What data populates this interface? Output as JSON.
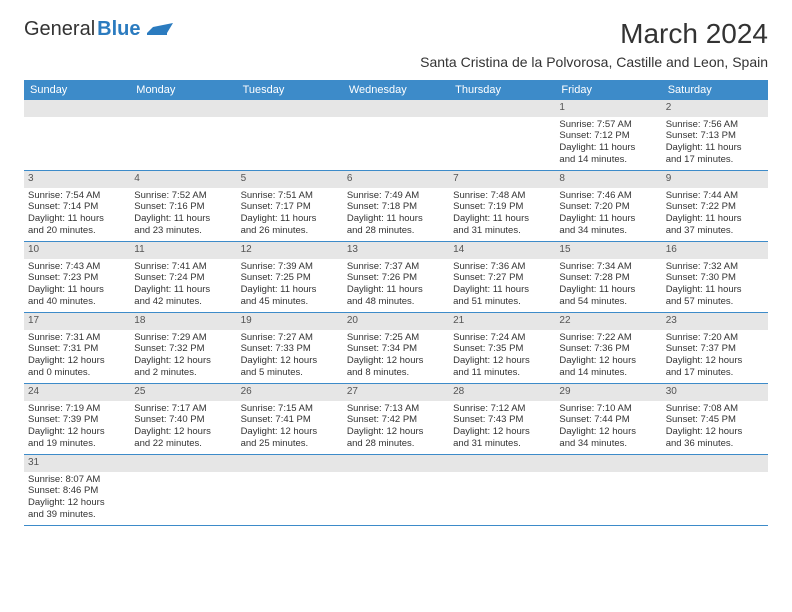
{
  "logo": {
    "part1": "General",
    "part2": "Blue"
  },
  "title": "March 2024",
  "location": "Santa Cristina de la Polvorosa, Castille and Leon, Spain",
  "colors": {
    "header_bg": "#3d8bc9",
    "header_text": "#ffffff",
    "daynum_bg": "#e6e6e6",
    "text": "#333333",
    "row_border": "#3d8bc9",
    "logo_blue": "#2b7bbf"
  },
  "day_headers": [
    "Sunday",
    "Monday",
    "Tuesday",
    "Wednesday",
    "Thursday",
    "Friday",
    "Saturday"
  ],
  "weeks": [
    [
      {
        "blank": true
      },
      {
        "blank": true
      },
      {
        "blank": true
      },
      {
        "blank": true
      },
      {
        "blank": true
      },
      {
        "n": "1",
        "sr": "Sunrise: 7:57 AM",
        "ss": "Sunset: 7:12 PM",
        "d1": "Daylight: 11 hours",
        "d2": "and 14 minutes."
      },
      {
        "n": "2",
        "sr": "Sunrise: 7:56 AM",
        "ss": "Sunset: 7:13 PM",
        "d1": "Daylight: 11 hours",
        "d2": "and 17 minutes."
      }
    ],
    [
      {
        "n": "3",
        "sr": "Sunrise: 7:54 AM",
        "ss": "Sunset: 7:14 PM",
        "d1": "Daylight: 11 hours",
        "d2": "and 20 minutes."
      },
      {
        "n": "4",
        "sr": "Sunrise: 7:52 AM",
        "ss": "Sunset: 7:16 PM",
        "d1": "Daylight: 11 hours",
        "d2": "and 23 minutes."
      },
      {
        "n": "5",
        "sr": "Sunrise: 7:51 AM",
        "ss": "Sunset: 7:17 PM",
        "d1": "Daylight: 11 hours",
        "d2": "and 26 minutes."
      },
      {
        "n": "6",
        "sr": "Sunrise: 7:49 AM",
        "ss": "Sunset: 7:18 PM",
        "d1": "Daylight: 11 hours",
        "d2": "and 28 minutes."
      },
      {
        "n": "7",
        "sr": "Sunrise: 7:48 AM",
        "ss": "Sunset: 7:19 PM",
        "d1": "Daylight: 11 hours",
        "d2": "and 31 minutes."
      },
      {
        "n": "8",
        "sr": "Sunrise: 7:46 AM",
        "ss": "Sunset: 7:20 PM",
        "d1": "Daylight: 11 hours",
        "d2": "and 34 minutes."
      },
      {
        "n": "9",
        "sr": "Sunrise: 7:44 AM",
        "ss": "Sunset: 7:22 PM",
        "d1": "Daylight: 11 hours",
        "d2": "and 37 minutes."
      }
    ],
    [
      {
        "n": "10",
        "sr": "Sunrise: 7:43 AM",
        "ss": "Sunset: 7:23 PM",
        "d1": "Daylight: 11 hours",
        "d2": "and 40 minutes."
      },
      {
        "n": "11",
        "sr": "Sunrise: 7:41 AM",
        "ss": "Sunset: 7:24 PM",
        "d1": "Daylight: 11 hours",
        "d2": "and 42 minutes."
      },
      {
        "n": "12",
        "sr": "Sunrise: 7:39 AM",
        "ss": "Sunset: 7:25 PM",
        "d1": "Daylight: 11 hours",
        "d2": "and 45 minutes."
      },
      {
        "n": "13",
        "sr": "Sunrise: 7:37 AM",
        "ss": "Sunset: 7:26 PM",
        "d1": "Daylight: 11 hours",
        "d2": "and 48 minutes."
      },
      {
        "n": "14",
        "sr": "Sunrise: 7:36 AM",
        "ss": "Sunset: 7:27 PM",
        "d1": "Daylight: 11 hours",
        "d2": "and 51 minutes."
      },
      {
        "n": "15",
        "sr": "Sunrise: 7:34 AM",
        "ss": "Sunset: 7:28 PM",
        "d1": "Daylight: 11 hours",
        "d2": "and 54 minutes."
      },
      {
        "n": "16",
        "sr": "Sunrise: 7:32 AM",
        "ss": "Sunset: 7:30 PM",
        "d1": "Daylight: 11 hours",
        "d2": "and 57 minutes."
      }
    ],
    [
      {
        "n": "17",
        "sr": "Sunrise: 7:31 AM",
        "ss": "Sunset: 7:31 PM",
        "d1": "Daylight: 12 hours",
        "d2": "and 0 minutes."
      },
      {
        "n": "18",
        "sr": "Sunrise: 7:29 AM",
        "ss": "Sunset: 7:32 PM",
        "d1": "Daylight: 12 hours",
        "d2": "and 2 minutes."
      },
      {
        "n": "19",
        "sr": "Sunrise: 7:27 AM",
        "ss": "Sunset: 7:33 PM",
        "d1": "Daylight: 12 hours",
        "d2": "and 5 minutes."
      },
      {
        "n": "20",
        "sr": "Sunrise: 7:25 AM",
        "ss": "Sunset: 7:34 PM",
        "d1": "Daylight: 12 hours",
        "d2": "and 8 minutes."
      },
      {
        "n": "21",
        "sr": "Sunrise: 7:24 AM",
        "ss": "Sunset: 7:35 PM",
        "d1": "Daylight: 12 hours",
        "d2": "and 11 minutes."
      },
      {
        "n": "22",
        "sr": "Sunrise: 7:22 AM",
        "ss": "Sunset: 7:36 PM",
        "d1": "Daylight: 12 hours",
        "d2": "and 14 minutes."
      },
      {
        "n": "23",
        "sr": "Sunrise: 7:20 AM",
        "ss": "Sunset: 7:37 PM",
        "d1": "Daylight: 12 hours",
        "d2": "and 17 minutes."
      }
    ],
    [
      {
        "n": "24",
        "sr": "Sunrise: 7:19 AM",
        "ss": "Sunset: 7:39 PM",
        "d1": "Daylight: 12 hours",
        "d2": "and 19 minutes."
      },
      {
        "n": "25",
        "sr": "Sunrise: 7:17 AM",
        "ss": "Sunset: 7:40 PM",
        "d1": "Daylight: 12 hours",
        "d2": "and 22 minutes."
      },
      {
        "n": "26",
        "sr": "Sunrise: 7:15 AM",
        "ss": "Sunset: 7:41 PM",
        "d1": "Daylight: 12 hours",
        "d2": "and 25 minutes."
      },
      {
        "n": "27",
        "sr": "Sunrise: 7:13 AM",
        "ss": "Sunset: 7:42 PM",
        "d1": "Daylight: 12 hours",
        "d2": "and 28 minutes."
      },
      {
        "n": "28",
        "sr": "Sunrise: 7:12 AM",
        "ss": "Sunset: 7:43 PM",
        "d1": "Daylight: 12 hours",
        "d2": "and 31 minutes."
      },
      {
        "n": "29",
        "sr": "Sunrise: 7:10 AM",
        "ss": "Sunset: 7:44 PM",
        "d1": "Daylight: 12 hours",
        "d2": "and 34 minutes."
      },
      {
        "n": "30",
        "sr": "Sunrise: 7:08 AM",
        "ss": "Sunset: 7:45 PM",
        "d1": "Daylight: 12 hours",
        "d2": "and 36 minutes."
      }
    ],
    [
      {
        "n": "31",
        "sr": "Sunrise: 8:07 AM",
        "ss": "Sunset: 8:46 PM",
        "d1": "Daylight: 12 hours",
        "d2": "and 39 minutes."
      },
      {
        "blank": true
      },
      {
        "blank": true
      },
      {
        "blank": true
      },
      {
        "blank": true
      },
      {
        "blank": true
      },
      {
        "blank": true
      }
    ]
  ]
}
